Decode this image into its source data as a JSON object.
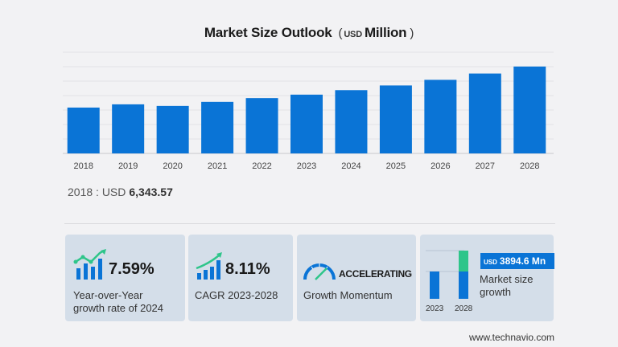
{
  "header": {
    "title_main": "Market Size Outlook",
    "title_paren_open": "(",
    "title_unit_small": "USD",
    "title_unit": "Million",
    "title_paren_close": ")"
  },
  "chart_data": {
    "type": "bar",
    "title": "Market Size Outlook (USD Million)",
    "xlabel": "",
    "ylabel": "USD Million",
    "categories": [
      "2018",
      "2019",
      "2020",
      "2021",
      "2022",
      "2023",
      "2024",
      "2025",
      "2026",
      "2027",
      "2028"
    ],
    "values": [
      6343.57,
      6790,
      6570,
      7130,
      7650,
      8130,
      8750,
      9400,
      10180,
      11050,
      12020
    ],
    "ylim": [
      0,
      14000
    ],
    "grid": true,
    "legend": "none",
    "bar_color": "#0a74d6"
  },
  "base_year": {
    "label": "2018 : USD",
    "value": "6,343.57"
  },
  "cards": {
    "yoy": {
      "value": "7.59%",
      "line1": "Year-over-Year",
      "line2": "growth rate of 2024",
      "icon": "bar-growth-icon"
    },
    "cagr": {
      "value": "8.11%",
      "label": "CAGR 2023-2028",
      "icon": "trend-up-icon"
    },
    "momentum": {
      "value": "ACCELERATING",
      "label": "Growth Momentum",
      "icon": "speedometer-icon"
    },
    "growth": {
      "badge_unit": "USD",
      "badge_value": "3894.6 Mn",
      "line1": "Market size",
      "line2": "growth",
      "year_start": "2023",
      "year_end": "2028",
      "colors": {
        "bar": "#0a74d6",
        "increment": "#2ec58a"
      }
    }
  },
  "footer": {
    "source": "www.technavio.com"
  }
}
